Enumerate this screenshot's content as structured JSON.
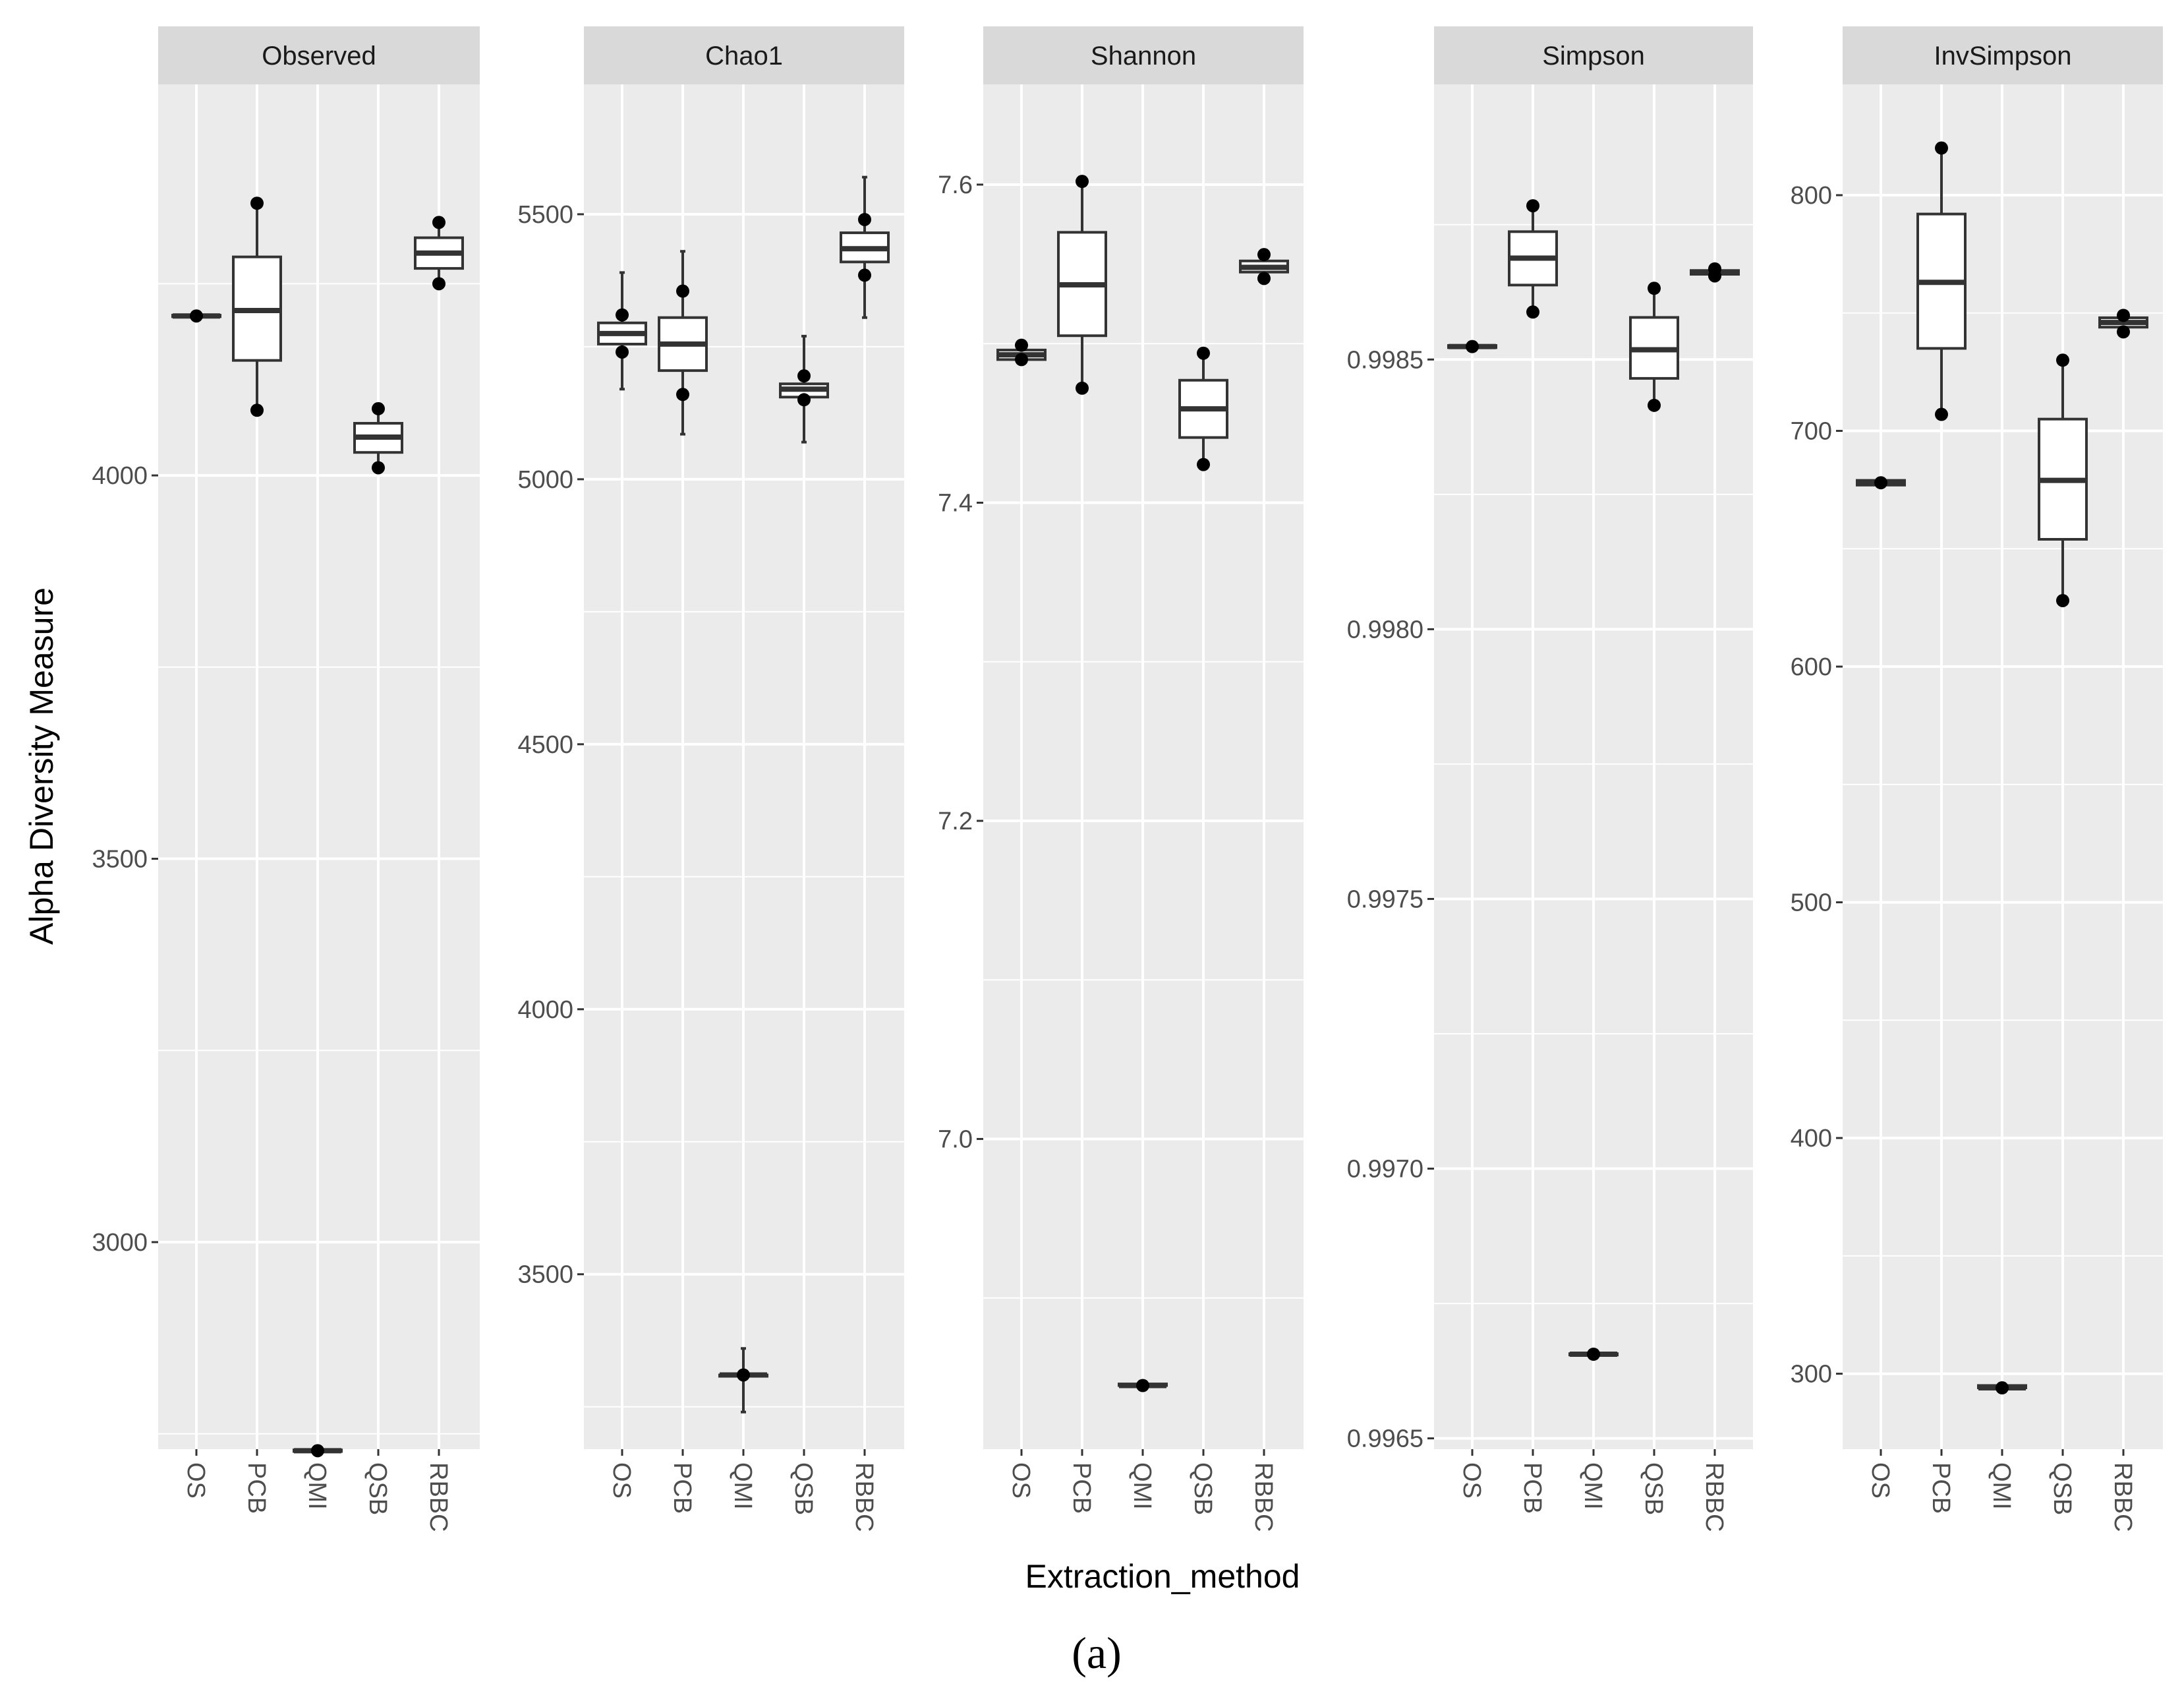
{
  "chart_data": {
    "type": "boxplot",
    "ylabel": "Alpha Diversity Measure",
    "xlabel": "Extraction_method",
    "caption": "(a)",
    "categories": [
      "OS",
      "PCB",
      "QMI",
      "QSB",
      "RBBC"
    ],
    "panels": [
      {
        "title": "Observed",
        "ylim": [
          2730,
          4510
        ],
        "ticks": [
          3000,
          3500,
          4000
        ],
        "tick_labels": [
          "3000",
          "3500",
          "4000"
        ],
        "minor": [
          2750,
          3250,
          3750,
          4250
        ],
        "boxes": [
          {
            "category": "OS",
            "min": 4207,
            "q1": 4207,
            "median": 4208,
            "q3": 4209,
            "max": 4209
          },
          {
            "category": "PCB",
            "min": 4085,
            "q1": 4150,
            "median": 4215,
            "q3": 4285,
            "max": 4355
          },
          {
            "category": "QMI",
            "min": 2727,
            "q1": 2727,
            "median": 2728,
            "q3": 2729,
            "max": 2729
          },
          {
            "category": "QSB",
            "min": 4010,
            "q1": 4030,
            "median": 4050,
            "q3": 4068,
            "max": 4087
          },
          {
            "category": "RBBC",
            "min": 4250,
            "q1": 4270,
            "median": 4290,
            "q3": 4310,
            "max": 4330
          }
        ],
        "points": [
          {
            "category": "OS",
            "values": [
              4208
            ]
          },
          {
            "category": "PCB",
            "values": [
              4355,
              4085
            ]
          },
          {
            "category": "QMI",
            "values": [
              2728
            ]
          },
          {
            "category": "QSB",
            "values": [
              4087,
              4010
            ]
          },
          {
            "category": "RBBC",
            "values": [
              4330,
              4250
            ]
          }
        ]
      },
      {
        "title": "Chao1",
        "ylim": [
          3170,
          5745
        ],
        "ticks": [
          3500,
          4000,
          4500,
          5000,
          5500
        ],
        "tick_labels": [
          "3500",
          "4000",
          "4500",
          "5000",
          "5500"
        ],
        "minor": [
          3250,
          3750,
          4250,
          4750,
          5250
        ],
        "boxes": [
          {
            "category": "OS",
            "min": 5170,
            "q1": 5255,
            "median": 5275,
            "q3": 5295,
            "max": 5390
          },
          {
            "category": "PCB",
            "min": 5085,
            "q1": 5205,
            "median": 5255,
            "q3": 5305,
            "max": 5430
          },
          {
            "category": "QMI",
            "min": 3240,
            "q1": 3310,
            "median": 3310,
            "q3": 3310,
            "max": 3360
          },
          {
            "category": "QSB",
            "min": 5070,
            "q1": 5155,
            "median": 5170,
            "q3": 5180,
            "max": 5270
          },
          {
            "category": "RBBC",
            "min": 5305,
            "q1": 5410,
            "median": 5435,
            "q3": 5465,
            "max": 5570
          }
        ],
        "points": [
          {
            "category": "OS",
            "values": [
              5310,
              5240
            ]
          },
          {
            "category": "PCB",
            "values": [
              5355,
              5160
            ]
          },
          {
            "category": "QMI",
            "values": [
              3310
            ]
          },
          {
            "category": "QSB",
            "values": [
              5195,
              5150
            ]
          },
          {
            "category": "RBBC",
            "values": [
              5490,
              5385
            ]
          }
        ]
      },
      {
        "title": "Shannon",
        "ylim": [
          6.805,
          7.663
        ],
        "ticks": [
          7.0,
          7.2,
          7.4,
          7.6
        ],
        "tick_labels": [
          "7.0",
          "7.2",
          "7.4",
          "7.6"
        ],
        "minor": [
          6.9,
          7.1,
          7.3,
          7.5
        ],
        "boxes": [
          {
            "category": "OS",
            "min": 7.49,
            "q1": 7.49,
            "median": 7.493,
            "q3": 7.496,
            "max": 7.499
          },
          {
            "category": "PCB",
            "min": 7.472,
            "q1": 7.505,
            "median": 7.537,
            "q3": 7.57,
            "max": 7.602
          },
          {
            "category": "QMI",
            "min": 6.845,
            "q1": 6.845,
            "median": 6.845,
            "q3": 6.846,
            "max": 6.846
          },
          {
            "category": "QSB",
            "min": 7.424,
            "q1": 7.441,
            "median": 7.459,
            "q3": 7.477,
            "max": 7.494
          },
          {
            "category": "RBBC",
            "min": 7.541,
            "q1": 7.545,
            "median": 7.548,
            "q3": 7.552,
            "max": 7.556
          }
        ],
        "points": [
          {
            "category": "OS",
            "values": [
              7.499,
              7.49
            ]
          },
          {
            "category": "PCB",
            "values": [
              7.602,
              7.472
            ]
          },
          {
            "category": "QMI",
            "values": [
              6.845
            ]
          },
          {
            "category": "QSB",
            "values": [
              7.494,
              7.424
            ]
          },
          {
            "category": "RBBC",
            "values": [
              7.556,
              7.541
            ]
          }
        ]
      },
      {
        "title": "Simpson",
        "ylim": [
          0.99648,
          0.99901
        ],
        "ticks": [
          0.9965,
          0.997,
          0.9975,
          0.998,
          0.9985
        ],
        "tick_labels": [
          "0.9965",
          "0.9970",
          "0.9975",
          "0.9980",
          "0.9985"
        ],
        "minor": [
          0.99675,
          0.99725,
          0.99775,
          0.99825,
          0.99875
        ],
        "boxes": [
          {
            "category": "OS",
            "min": 0.998522,
            "q1": 0.998522,
            "median": 0.998524,
            "q3": 0.998526,
            "max": 0.998527
          },
          {
            "category": "PCB",
            "min": 0.998588,
            "q1": 0.998638,
            "median": 0.998688,
            "q3": 0.998737,
            "max": 0.998785
          },
          {
            "category": "QMI",
            "min": 0.996655,
            "q1": 0.996655,
            "median": 0.996656,
            "q3": 0.996657,
            "max": 0.996657
          },
          {
            "category": "QSB",
            "min": 0.998415,
            "q1": 0.998465,
            "median": 0.998518,
            "q3": 0.998578,
            "max": 0.998632
          },
          {
            "category": "RBBC",
            "min": 0.998655,
            "q1": 0.998658,
            "median": 0.998662,
            "q3": 0.998665,
            "max": 0.998668
          }
        ],
        "points": [
          {
            "category": "OS",
            "values": [
              0.998524
            ]
          },
          {
            "category": "PCB",
            "values": [
              0.998785,
              0.998588
            ]
          },
          {
            "category": "QMI",
            "values": [
              0.996656
            ]
          },
          {
            "category": "QSB",
            "values": [
              0.998632,
              0.998415
            ]
          },
          {
            "category": "RBBC",
            "values": [
              0.998668,
              0.998655
            ]
          }
        ]
      },
      {
        "title": "InvSimpson",
        "ylim": [
          268,
          847
        ],
        "ticks": [
          300,
          400,
          500,
          600,
          700,
          800
        ],
        "tick_labels": [
          "300",
          "400",
          "500",
          "600",
          "700",
          "800"
        ],
        "minor": [
          350,
          450,
          550,
          650,
          750
        ],
        "boxes": [
          {
            "category": "OS",
            "min": 676,
            "q1": 677,
            "median": 678,
            "q3": 679,
            "max": 680
          },
          {
            "category": "PCB",
            "min": 707,
            "q1": 735,
            "median": 763,
            "q3": 792,
            "max": 820
          },
          {
            "category": "QMI",
            "min": 293,
            "q1": 294,
            "median": 294,
            "q3": 295,
            "max": 295
          },
          {
            "category": "QSB",
            "min": 628,
            "q1": 654,
            "median": 679,
            "q3": 705,
            "max": 730
          },
          {
            "category": "RBBC",
            "min": 742,
            "q1": 744,
            "median": 746,
            "q3": 748,
            "max": 749
          }
        ],
        "points": [
          {
            "category": "OS",
            "values": [
              678
            ]
          },
          {
            "category": "PCB",
            "values": [
              820,
              707
            ]
          },
          {
            "category": "QMI",
            "values": [
              294
            ]
          },
          {
            "category": "QSB",
            "values": [
              730,
              628
            ]
          },
          {
            "category": "RBBC",
            "values": [
              749,
              742
            ]
          }
        ]
      }
    ]
  }
}
